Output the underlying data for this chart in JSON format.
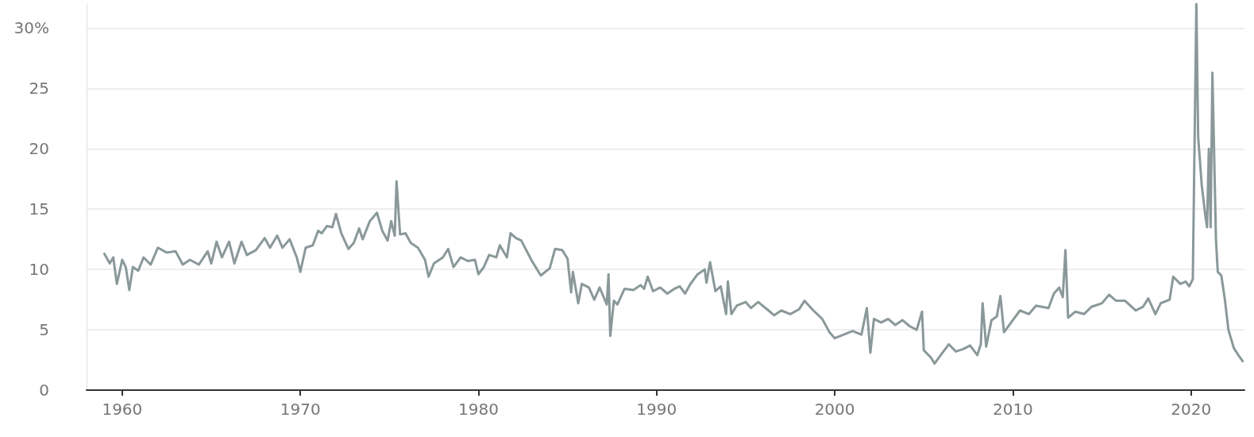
{
  "chart_data": {
    "type": "line",
    "marker": "none",
    "line_style": "solid",
    "grid": "y",
    "xlim": [
      1958,
      2023
    ],
    "xticks": [
      1960,
      1970,
      1980,
      1990,
      2000,
      2010,
      2020
    ],
    "ylim": [
      0,
      32
    ],
    "yticks": [
      0,
      5,
      10,
      15,
      20,
      25,
      {
        "value": 30,
        "label": "30%"
      }
    ],
    "series": [
      {
        "color": "#8a9899",
        "x": [
          1959.0,
          1959.3,
          1959.5,
          1959.7,
          1960.0,
          1960.2,
          1960.4,
          1960.6,
          1960.9,
          1961.2,
          1961.6,
          1962.0,
          1962.5,
          1963.0,
          1963.4,
          1963.8,
          1964.3,
          1964.8,
          1965.0,
          1965.3,
          1965.6,
          1966.0,
          1966.3,
          1966.7,
          1967.0,
          1967.5,
          1968.0,
          1968.3,
          1968.7,
          1969.0,
          1969.4,
          1969.8,
          1970.0,
          1970.3,
          1970.7,
          1971.0,
          1971.2,
          1971.5,
          1971.8,
          1972.0,
          1972.3,
          1972.7,
          1973.0,
          1973.3,
          1973.5,
          1973.9,
          1974.3,
          1974.6,
          1974.9,
          1975.1,
          1975.3,
          1975.4,
          1975.6,
          1975.9,
          1976.2,
          1976.6,
          1977.0,
          1977.2,
          1977.5,
          1978.0,
          1978.3,
          1978.6,
          1979.0,
          1979.4,
          1979.8,
          1980.0,
          1980.3,
          1980.6,
          1981.0,
          1981.2,
          1981.6,
          1981.8,
          1982.1,
          1982.4,
          1983.0,
          1983.5,
          1984.0,
          1984.3,
          1984.7,
          1985.0,
          1985.2,
          1985.3,
          1985.6,
          1985.8,
          1986.2,
          1986.5,
          1986.8,
          1987.2,
          1987.3,
          1987.4,
          1987.6,
          1987.8,
          1988.2,
          1988.7,
          1989.1,
          1989.3,
          1989.5,
          1989.8,
          1990.2,
          1990.6,
          1991.0,
          1991.3,
          1991.6,
          1991.9,
          1992.3,
          1992.7,
          1992.8,
          1993.0,
          1993.3,
          1993.6,
          1993.9,
          1994.0,
          1994.2,
          1994.5,
          1995.0,
          1995.3,
          1995.7,
          1996.2,
          1996.6,
          1997.0,
          1997.5,
          1998.0,
          1998.3,
          1998.8,
          1999.3,
          1999.7,
          2000.0,
          2000.5,
          2001.0,
          2001.5,
          2001.8,
          2002.0,
          2002.2,
          2002.6,
          2003.0,
          2003.4,
          2003.8,
          2004.2,
          2004.6,
          2004.9,
          2005.0,
          2005.4,
          2005.6,
          2006.0,
          2006.4,
          2006.8,
          2007.2,
          2007.6,
          2008.0,
          2008.2,
          2008.3,
          2008.5,
          2008.8,
          2009.1,
          2009.3,
          2009.5,
          2009.9,
          2010.4,
          2010.9,
          2011.3,
          2012.0,
          2012.3,
          2012.6,
          2012.8,
          2012.95,
          2013.1,
          2013.5,
          2014.0,
          2014.4,
          2015.0,
          2015.4,
          2015.8,
          2016.3,
          2016.9,
          2017.3,
          2017.6,
          2018.0,
          2018.3,
          2018.8,
          2019.0,
          2019.4,
          2019.7,
          2019.9,
          2020.1,
          2020.3,
          2020.4,
          2020.6,
          2020.8,
          2020.9,
          2021.0,
          2021.1,
          2021.2,
          2021.4,
          2021.5,
          2021.7,
          2021.9,
          2022.1,
          2022.4,
          2022.7,
          2022.9
        ],
        "values": [
          11.3,
          10.5,
          11.0,
          8.8,
          10.8,
          10.2,
          8.3,
          10.2,
          9.9,
          11.0,
          10.4,
          11.8,
          11.4,
          11.5,
          10.4,
          10.8,
          10.4,
          11.5,
          10.5,
          12.3,
          11.0,
          12.3,
          10.5,
          12.3,
          11.2,
          11.6,
          12.6,
          11.8,
          12.8,
          11.8,
          12.5,
          11.0,
          9.8,
          11.8,
          12.0,
          13.2,
          13.0,
          13.6,
          13.5,
          14.6,
          13.0,
          11.7,
          12.2,
          13.4,
          12.5,
          14.0,
          14.7,
          13.2,
          12.4,
          14.0,
          12.8,
          17.3,
          12.9,
          13.0,
          12.2,
          11.8,
          10.8,
          9.4,
          10.5,
          11.0,
          11.7,
          10.2,
          11.0,
          10.7,
          10.8,
          9.6,
          10.2,
          11.2,
          11.0,
          12.0,
          11.0,
          13.0,
          12.6,
          12.4,
          10.7,
          9.5,
          10.1,
          11.7,
          11.6,
          10.9,
          8.1,
          9.8,
          7.2,
          8.8,
          8.5,
          7.5,
          8.5,
          7.1,
          9.6,
          4.5,
          7.4,
          7.1,
          8.4,
          8.3,
          8.7,
          8.4,
          9.4,
          8.2,
          8.5,
          8.0,
          8.4,
          8.6,
          8.0,
          8.8,
          9.6,
          10.0,
          8.9,
          10.6,
          8.2,
          8.6,
          6.3,
          9.0,
          6.3,
          7.0,
          7.3,
          6.8,
          7.3,
          6.7,
          6.2,
          6.6,
          6.3,
          6.7,
          7.4,
          6.6,
          5.9,
          4.8,
          4.3,
          4.6,
          4.9,
          4.6,
          6.8,
          3.1,
          5.9,
          5.6,
          5.9,
          5.4,
          5.8,
          5.3,
          5.0,
          6.5,
          3.3,
          2.7,
          2.2,
          3.0,
          3.8,
          3.2,
          3.4,
          3.7,
          2.9,
          3.8,
          7.2,
          3.6,
          5.8,
          6.1,
          7.8,
          4.8,
          5.6,
          6.6,
          6.3,
          7.0,
          6.8,
          8.0,
          8.5,
          7.7,
          11.6,
          6.0,
          6.5,
          6.3,
          6.9,
          7.2,
          7.9,
          7.4,
          7.4,
          6.6,
          6.9,
          7.6,
          6.3,
          7.2,
          7.5,
          9.4,
          8.8,
          9.0,
          8.6,
          9.2,
          32,
          21,
          17,
          14.5,
          13.5,
          20,
          13.5,
          26.3,
          12.5,
          9.8,
          9.5,
          7.5,
          5.0,
          3.5,
          2.8,
          2.4
        ]
      }
    ]
  }
}
